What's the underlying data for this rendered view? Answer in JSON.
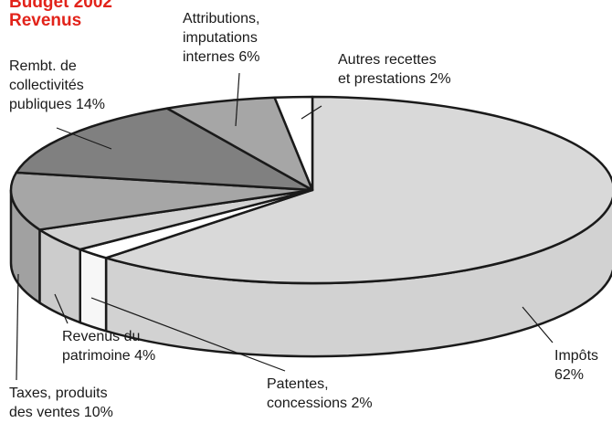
{
  "chart_data": {
    "type": "pie3d",
    "title": "Budget 2002",
    "subtitle": "Revenus",
    "categories": [
      "Impôts",
      "Patentes,\nconcessions ",
      "Revenus du\npatrimoine",
      "Taxes, produits\ndes ventes",
      "Rembt. de\ncollectivités\npubliques",
      "Attributions,\nimputations\ninternes",
      "Autres recettes\net prestations"
    ],
    "values": [
      62,
      2,
      4,
      10,
      14,
      6,
      2
    ],
    "value_labels": [
      "62%",
      "2%",
      "4%",
      "10%",
      "14%",
      "6%",
      "2%"
    ],
    "colors": [
      "#d9d9d9",
      "#ffffff",
      "#d2d2d2",
      "#a6a6a6",
      "#808080",
      "#a6a6a6",
      "#ffffff"
    ]
  }
}
